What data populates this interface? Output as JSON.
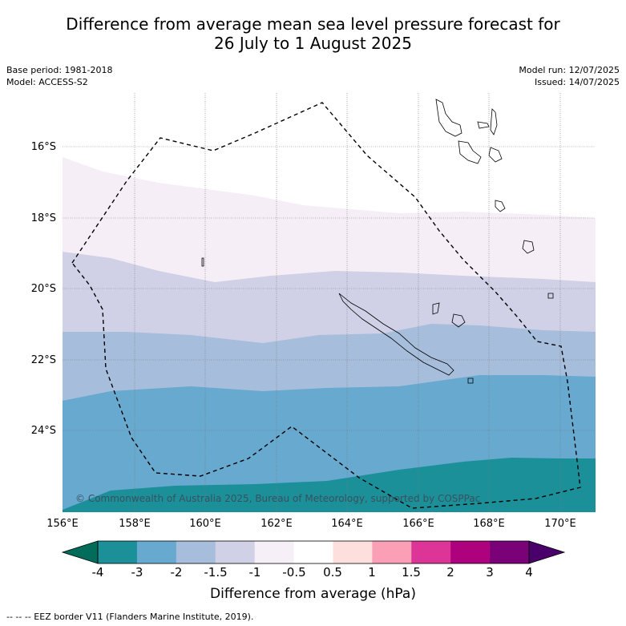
{
  "title": {
    "line1": "Difference from average mean sea level pressure forecast for",
    "line2": "26 July to 1 August 2025"
  },
  "meta_left": {
    "base_period": "Base period: 1981-2018",
    "model": "Model: ACCESS-S2"
  },
  "meta_right": {
    "model_run": "Model run: 12/07/2025",
    "issued": "Issued: 14/07/2025"
  },
  "map": {
    "lon_labels": [
      "156°E",
      "158°E",
      "160°E",
      "162°E",
      "164°E",
      "166°E",
      "168°E",
      "170°E"
    ],
    "lat_labels": [
      "16°S",
      "18°S",
      "20°S",
      "22°S",
      "24°S"
    ],
    "lon_range": [
      156,
      171
    ],
    "lat_range": [
      -14.8,
      -26.6
    ],
    "copyright": "© Commonwealth of Australia 2025, Bureau of Meteorology, supported by COSPPac",
    "anomaly_bands_hPa": [
      {
        "range": "-0.5 to 0",
        "color": "#f5eef6"
      },
      {
        "range": "-1 to -0.5",
        "color": "#f3ecf5"
      },
      {
        "range": "-1.5 to -1",
        "color": "#d0d1e6"
      },
      {
        "range": "-2 to -1.5",
        "color": "#a6bddb"
      },
      {
        "range": "-3 to -2",
        "color": "#67a9cf"
      },
      {
        "range": "-4 to -3",
        "color": "#1c9099"
      }
    ]
  },
  "colorbar": {
    "ticks": [
      "-4",
      "-3",
      "-2",
      "-1.5",
      "-1",
      "-0.5",
      "0.5",
      "1",
      "1.5",
      "2",
      "3",
      "4"
    ],
    "colors": [
      "#1c9099",
      "#67a9cf",
      "#a6bddb",
      "#d0d1e6",
      "#f6eff7",
      "#ffffff",
      "#fde0dd",
      "#fa9fb5",
      "#dd3497",
      "#ae017e",
      "#7a0177"
    ],
    "under_color": "#016c59",
    "over_color": "#49006a",
    "label": "Difference from average (hPa)"
  },
  "footer": "-- -- -- EEZ border V11 (Flanders Marine Institute, 2019)."
}
